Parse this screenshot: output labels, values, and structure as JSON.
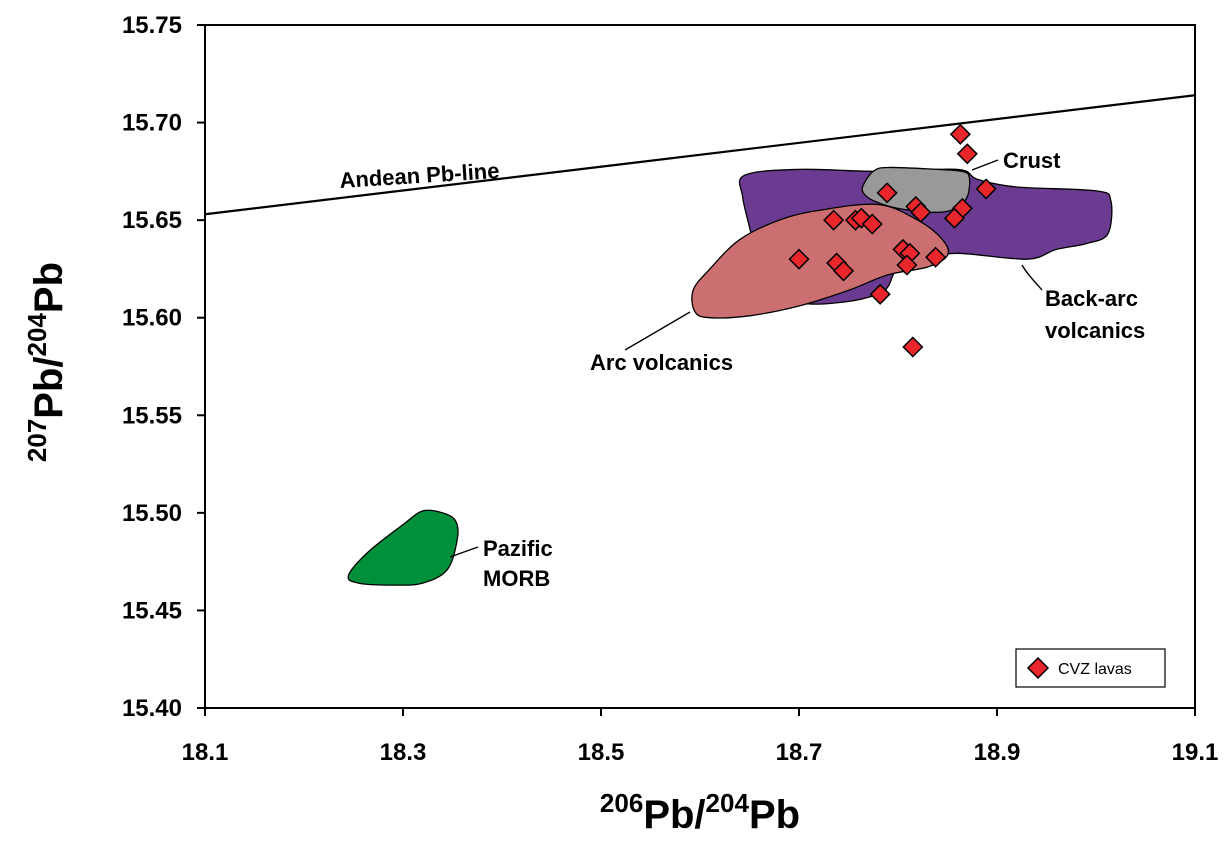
{
  "chart_data": {
    "type": "scatter",
    "title": "",
    "xlabel": {
      "sup": "206",
      "main": "Pb/",
      "sup2": "204",
      "main2": "Pb"
    },
    "ylabel": {
      "sup": "207",
      "main": "Pb/",
      "sup2": "204",
      "main2": "Pb"
    },
    "xlim": [
      18.1,
      19.1
    ],
    "ylim": [
      15.4,
      15.75
    ],
    "x_ticks": [
      "18.1",
      "18.3",
      "18.5",
      "18.7",
      "18.9",
      "19.1"
    ],
    "x_tick_values": [
      18.1,
      18.3,
      18.5,
      18.7,
      18.9,
      19.1
    ],
    "y_ticks": [
      "15.40",
      "15.45",
      "15.50",
      "15.55",
      "15.60",
      "15.65",
      "15.70",
      "15.75"
    ],
    "y_tick_values": [
      15.4,
      15.45,
      15.5,
      15.55,
      15.6,
      15.65,
      15.7,
      15.75
    ],
    "grid": false,
    "legend_position": "bottom-right",
    "series": [
      {
        "name": "CVZ lavas",
        "marker": "diamond",
        "color": "#e8262b",
        "points": [
          [
            18.863,
            15.694
          ],
          [
            18.87,
            15.684
          ],
          [
            18.889,
            15.666
          ],
          [
            18.789,
            15.664
          ],
          [
            18.818,
            15.657
          ],
          [
            18.823,
            15.654
          ],
          [
            18.865,
            15.656
          ],
          [
            18.857,
            15.651
          ],
          [
            18.735,
            15.65
          ],
          [
            18.757,
            15.65
          ],
          [
            18.763,
            15.651
          ],
          [
            18.774,
            15.648
          ],
          [
            18.7,
            15.63
          ],
          [
            18.738,
            15.628
          ],
          [
            18.745,
            15.624
          ],
          [
            18.805,
            15.635
          ],
          [
            18.812,
            15.633
          ],
          [
            18.809,
            15.627
          ],
          [
            18.838,
            15.631
          ],
          [
            18.782,
            15.612
          ],
          [
            18.815,
            15.585
          ]
        ]
      }
    ],
    "reference_line": {
      "label": "Andean Pb-line",
      "points": [
        [
          18.1,
          15.653
        ],
        [
          19.1,
          15.714
        ]
      ]
    },
    "regions": [
      {
        "label": "Crust",
        "color": "#999999",
        "polygon": [
          [
            18.765,
            15.668
          ],
          [
            18.775,
            15.675
          ],
          [
            18.79,
            15.677
          ],
          [
            18.84,
            15.676
          ],
          [
            18.865,
            15.675
          ],
          [
            18.872,
            15.672
          ],
          [
            18.87,
            15.662
          ],
          [
            18.858,
            15.656
          ],
          [
            18.838,
            15.654
          ],
          [
            18.8,
            15.656
          ],
          [
            18.775,
            15.66
          ],
          [
            18.765,
            15.664
          ]
        ]
      },
      {
        "label": "Back-arc volcanics",
        "color": "#6b3b92",
        "polygon": [
          [
            18.645,
            15.673
          ],
          [
            18.7,
            15.676
          ],
          [
            18.78,
            15.675
          ],
          [
            18.86,
            15.676
          ],
          [
            18.88,
            15.671
          ],
          [
            18.92,
            15.667
          ],
          [
            19.0,
            15.665
          ],
          [
            19.015,
            15.66
          ],
          [
            19.012,
            15.643
          ],
          [
            18.99,
            15.638
          ],
          [
            18.96,
            15.635
          ],
          [
            18.93,
            15.63
          ],
          [
            18.86,
            15.633
          ],
          [
            18.83,
            15.63
          ],
          [
            18.8,
            15.625
          ],
          [
            18.79,
            15.616
          ],
          [
            18.78,
            15.612
          ],
          [
            18.745,
            15.608
          ],
          [
            18.7,
            15.608
          ],
          [
            18.66,
            15.62
          ],
          [
            18.652,
            15.642
          ],
          [
            18.643,
            15.662
          ]
        ]
      },
      {
        "label": "Arc volcanics",
        "color": "#cc6f70",
        "polygon": [
          [
            18.595,
            15.603
          ],
          [
            18.593,
            15.614
          ],
          [
            18.61,
            15.625
          ],
          [
            18.64,
            15.64
          ],
          [
            18.68,
            15.65
          ],
          [
            18.72,
            15.655
          ],
          [
            18.78,
            15.658
          ],
          [
            18.82,
            15.65
          ],
          [
            18.845,
            15.64
          ],
          [
            18.85,
            15.632
          ],
          [
            18.83,
            15.626
          ],
          [
            18.79,
            15.622
          ],
          [
            18.75,
            15.614
          ],
          [
            18.7,
            15.606
          ],
          [
            18.65,
            15.601
          ],
          [
            18.61,
            15.6
          ]
        ]
      },
      {
        "label": "Pazific MORB",
        "color": "#008f3a",
        "polygon": [
          [
            18.245,
            15.468
          ],
          [
            18.255,
            15.464
          ],
          [
            18.29,
            15.463
          ],
          [
            18.32,
            15.464
          ],
          [
            18.345,
            15.471
          ],
          [
            18.355,
            15.487
          ],
          [
            18.353,
            15.496
          ],
          [
            18.34,
            15.5
          ],
          [
            18.32,
            15.501
          ],
          [
            18.3,
            15.494
          ],
          [
            18.265,
            15.48
          ]
        ]
      }
    ],
    "region_labels": [
      {
        "name": "Crust",
        "lines": [
          "Crust"
        ]
      },
      {
        "name": "Back-arc volcanics",
        "lines": [
          "Back-arc",
          "volcanics"
        ]
      },
      {
        "name": "Arc volcanics",
        "lines": [
          "Arc volcanics"
        ]
      },
      {
        "name": "Pazific MORB",
        "lines": [
          "Pazific",
          "MORB"
        ]
      }
    ]
  }
}
